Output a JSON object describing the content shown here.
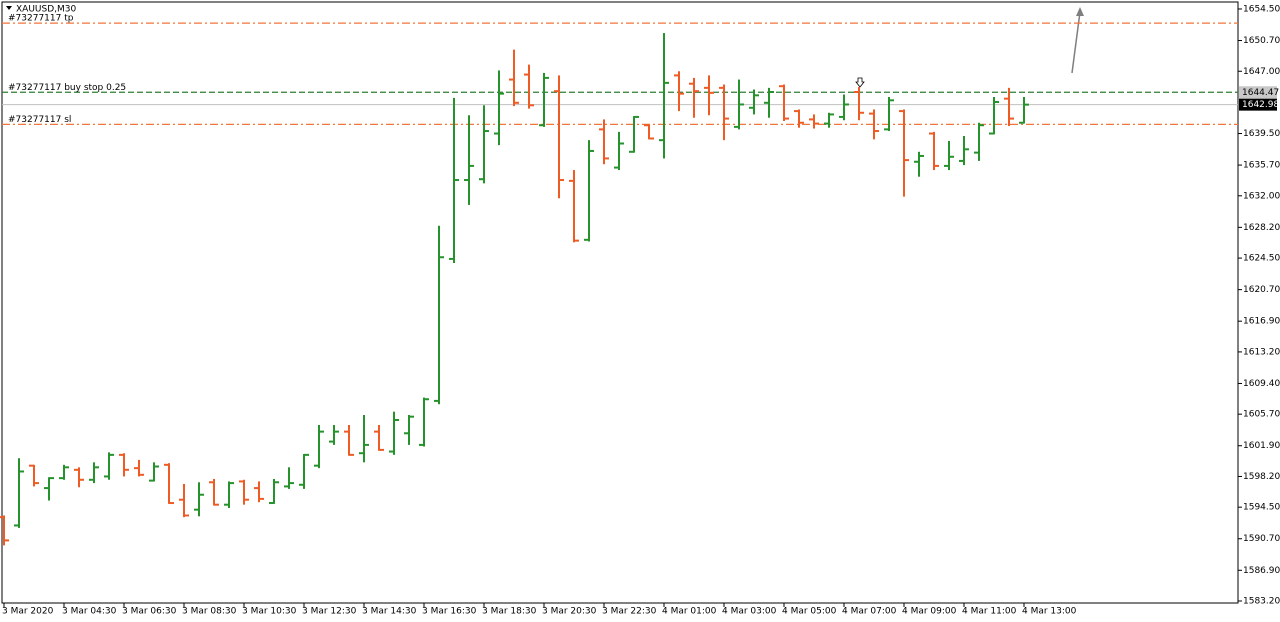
{
  "chart_data": {
    "type": "ohlc",
    "title": "XAUUSD,M30",
    "up_color": "#26922b",
    "down_color": "#ee5b25",
    "categories": [
      "3 Mar 2020",
      null,
      null,
      null,
      "3 Mar 04:30",
      null,
      null,
      null,
      "3 Mar 06:30",
      null,
      null,
      null,
      "3 Mar 08:30",
      null,
      null,
      null,
      "3 Mar 10:30",
      null,
      null,
      null,
      "3 Mar 12:30",
      null,
      null,
      null,
      "3 Mar 14:30",
      null,
      null,
      null,
      "3 Mar 16:30",
      null,
      null,
      null,
      "3 Mar 18:30",
      null,
      null,
      null,
      "3 Mar 20:30",
      null,
      null,
      null,
      "3 Mar 22:30",
      null,
      null,
      null,
      "4 Mar 01:00",
      null,
      null,
      null,
      "4 Mar 03:00",
      null,
      null,
      null,
      "4 Mar 05:00",
      null,
      null,
      null,
      "4 Mar 07:00",
      null,
      null,
      null,
      "4 Mar 09:00",
      null,
      null,
      null,
      "4 Mar 11:00",
      null,
      null,
      null,
      "4 Mar 13:00"
    ],
    "open": [
      1593.3,
      1592.3,
      1599.5,
      1596.8,
      1598.0,
      1599.0,
      1597.8,
      1598.2,
      1600.8,
      1599.2,
      1597.7,
      1599.6,
      1595.4,
      1594.2,
      1597.5,
      1594.8,
      1597.6,
      1596.8,
      1595.0,
      1597.0,
      1597.2,
      1599.5,
      1602.4,
      1603.6,
      1601.0,
      1603.6,
      1601.2,
      1603.4,
      1602.0,
      1607.3,
      1624.4,
      1633.9,
      1634.0,
      1639.5,
      1646.0,
      1646.6,
      1640.5,
      1644.6,
      1633.8,
      1626.7,
      1640.0,
      1635.4,
      1637.3,
      1640.5,
      1638.7,
      1646.5,
      1645.5,
      1645.0,
      1645.0,
      1640.3,
      1642.6,
      1643.2,
      1645.2,
      1642.2,
      1641.2,
      1640.7,
      1641.5,
      1644.5,
      1641.9,
      1640.0,
      1642.2,
      1636.1,
      1639.5,
      1635.6,
      1636.2,
      1637.2,
      1639.5,
      1643.7,
      1640.8
    ],
    "high": [
      1593.5,
      1600.4,
      1599.6,
      1598.1,
      1599.6,
      1599.3,
      1599.9,
      1601.1,
      1601.0,
      1600.2,
      1599.9,
      1599.8,
      1597.3,
      1597.5,
      1597.9,
      1597.6,
      1597.8,
      1597.6,
      1597.9,
      1599.3,
      1600.9,
      1604.4,
      1604.4,
      1604.4,
      1605.6,
      1604.4,
      1606.0,
      1605.6,
      1607.7,
      1628.4,
      1643.8,
      1641.7,
      1642.9,
      1647.1,
      1649.6,
      1647.8,
      1646.8,
      1646.5,
      1635.1,
      1638.7,
      1641.2,
      1639.7,
      1641.6,
      1640.6,
      1651.6,
      1647.0,
      1646.2,
      1646.5,
      1645.4,
      1646.0,
      1644.8,
      1645.0,
      1645.4,
      1642.4,
      1641.8,
      1642.0,
      1644.2,
      1645.1,
      1642.4,
      1643.9,
      1642.4,
      1637.3,
      1639.7,
      1638.6,
      1639.2,
      1640.8,
      1643.9,
      1645.0,
      1643.9
    ],
    "low": [
      1589.9,
      1592.0,
      1597.0,
      1595.3,
      1597.8,
      1596.9,
      1597.4,
      1597.8,
      1598.2,
      1598.2,
      1597.6,
      1594.9,
      1593.3,
      1593.4,
      1594.7,
      1594.4,
      1594.8,
      1595.1,
      1594.9,
      1596.7,
      1596.7,
      1599.2,
      1602.0,
      1600.7,
      1599.9,
      1601.3,
      1600.8,
      1602.0,
      1601.8,
      1606.9,
      1623.9,
      1630.9,
      1633.5,
      1638.1,
      1642.8,
      1642.5,
      1640.3,
      1631.7,
      1626.4,
      1626.5,
      1635.8,
      1635.1,
      1637.2,
      1638.8,
      1636.5,
      1642.2,
      1641.4,
      1641.7,
      1638.7,
      1640.0,
      1641.8,
      1641.4,
      1641.0,
      1640.2,
      1640.1,
      1640.2,
      1641.1,
      1641.1,
      1638.8,
      1639.8,
      1631.9,
      1634.3,
      1635.1,
      1635.1,
      1635.7,
      1636.2,
      1639.4,
      1640.4,
      1640.7
    ],
    "close": [
      1590.5,
      1598.8,
      1597.4,
      1598.0,
      1599.3,
      1597.8,
      1599.3,
      1600.8,
      1599.0,
      1598.4,
      1599.4,
      1595.0,
      1593.5,
      1596.0,
      1594.8,
      1597.4,
      1595.4,
      1595.5,
      1597.5,
      1597.4,
      1600.8,
      1603.6,
      1603.6,
      1600.8,
      1602.0,
      1601.4,
      1605.0,
      1605.4,
      1607.5,
      1624.6,
      1633.9,
      1635.6,
      1639.8,
      1644.3,
      1643.2,
      1642.9,
      1646.2,
      1633.9,
      1626.6,
      1637.4,
      1636.5,
      1638.3,
      1641.5,
      1638.9,
      1645.6,
      1644.3,
      1644.6,
      1644.4,
      1641.3,
      1643.0,
      1644.1,
      1644.5,
      1641.3,
      1640.8,
      1640.7,
      1641.8,
      1643.0,
      1642.0,
      1639.8,
      1643.5,
      1636.3,
      1636.8,
      1635.6,
      1636.7,
      1637.6,
      1640.5,
      1643.3,
      1641.3,
      1642.98
    ],
    "ylim": [
      1582.96,
      1655.34
    ],
    "yticks": [
      {
        "value": 1654.5,
        "label": "1654.50"
      },
      {
        "value": 1650.7,
        "label": "1650.70"
      },
      {
        "value": 1647.0,
        "label": "1647.00"
      },
      {
        "value": 1639.5,
        "label": "1639.50"
      },
      {
        "value": 1635.7,
        "label": "1635.70"
      },
      {
        "value": 1632.0,
        "label": "1632.00"
      },
      {
        "value": 1628.2,
        "label": "1628.20"
      },
      {
        "value": 1624.5,
        "label": "1624.50"
      },
      {
        "value": 1620.7,
        "label": "1620.70"
      },
      {
        "value": 1616.9,
        "label": "1616.90"
      },
      {
        "value": 1613.2,
        "label": "1613.20"
      },
      {
        "value": 1609.4,
        "label": "1609.40"
      },
      {
        "value": 1605.7,
        "label": "1605.70"
      },
      {
        "value": 1601.9,
        "label": "1601.90"
      },
      {
        "value": 1598.2,
        "label": "1598.20"
      },
      {
        "value": 1594.5,
        "label": "1594.50"
      },
      {
        "value": 1590.7,
        "label": "1590.70"
      },
      {
        "value": 1586.9,
        "label": "1586.90"
      },
      {
        "value": 1583.2,
        "label": "1583.20"
      }
    ],
    "grid": false,
    "levels": [
      {
        "label": "#73277117 tp",
        "value": 1652.8,
        "color": "#f0763c",
        "style": "dash-dot",
        "show_value": false
      },
      {
        "label": "#73277117 buy stop 0.25",
        "value": 1644.47,
        "color": "#2e7d32",
        "style": "dash",
        "show_value": true
      },
      {
        "label": "#73277117 sl",
        "value": 1640.6,
        "color": "#f0763c",
        "style": "dash-dot",
        "show_value": false
      }
    ],
    "bid": {
      "value": 1642.98,
      "color": "#c0c0c0"
    }
  }
}
